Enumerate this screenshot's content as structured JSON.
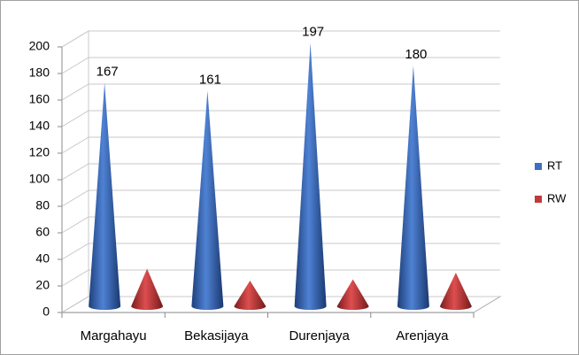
{
  "chart_data": {
    "type": "bar",
    "style": "cone-3d",
    "categories": [
      "Margahayu",
      "Bekasijaya",
      "Durenjaya",
      "Arenjaya"
    ],
    "series": [
      {
        "name": "RT",
        "color": "#3f6fbf",
        "values": [
          167,
          161,
          197,
          180
        ],
        "show_labels": true
      },
      {
        "name": "RW",
        "color": "#c0393b",
        "values": [
          27,
          18,
          19,
          24
        ],
        "show_labels": false
      }
    ],
    "ylim": [
      0,
      200
    ],
    "yticks": [
      0,
      20,
      40,
      60,
      80,
      100,
      120,
      140,
      160,
      180,
      200
    ],
    "grid": true,
    "legend": "right"
  }
}
